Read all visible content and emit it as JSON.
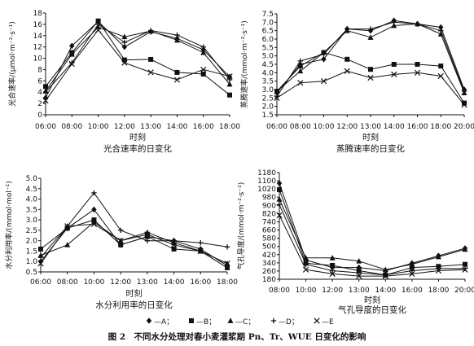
{
  "figure_caption": "图 2　不同水分处理对春小麦灌浆期 Pn、Tr、WUE 日变化的影响",
  "legend": {
    "entries": [
      {
        "label": "—A；",
        "marker": "diamond"
      },
      {
        "label": "—B；",
        "marker": "square"
      },
      {
        "label": "—C；",
        "marker": "triangle"
      },
      {
        "label": "—D；",
        "marker": "cross"
      },
      {
        "label": "—E",
        "marker": "x"
      }
    ]
  },
  "chart_data": [
    {
      "type": "line",
      "panel": "a",
      "title": "光合速率的日变化",
      "xlabel": "时刻",
      "ylabel": "光合速率/(μmol·m⁻²·s⁻¹)",
      "x": [
        "06:00",
        "08:00",
        "10:00",
        "12:00",
        "13:00",
        "14:00",
        "16:00",
        "18:00"
      ],
      "ylim": [
        0,
        18
      ],
      "yticks": [
        "0",
        "2",
        "4",
        "6",
        "8",
        "10",
        "12",
        "14",
        "16",
        "18"
      ],
      "series": [
        {
          "name": "A",
          "marker": "diamond",
          "values": [
            3.0,
            12.2,
            16.5,
            12.0,
            14.7,
            13.5,
            11.5,
            6.7
          ]
        },
        {
          "name": "B",
          "marker": "square",
          "values": [
            5.0,
            11.0,
            16.6,
            9.7,
            9.8,
            7.5,
            7.2,
            3.5
          ]
        },
        {
          "name": "C",
          "marker": "triangle",
          "values": [
            4.2,
            10.7,
            15.5,
            13.8,
            14.8,
            13.2,
            11.0,
            5.4
          ]
        },
        {
          "name": "D",
          "marker": "cross",
          "values": [
            4.0,
            9.2,
            16.0,
            12.8,
            14.9,
            14.1,
            12.0,
            6.2
          ]
        },
        {
          "name": "E",
          "marker": "x",
          "values": [
            2.5,
            9.0,
            15.0,
            9.2,
            7.5,
            6.2,
            8.0,
            6.8
          ]
        }
      ]
    },
    {
      "type": "line",
      "panel": "b",
      "title": "蒸腾速率的日变化",
      "xlabel": "时刻",
      "ylabel": "蒸腾速率/(mmol·m⁻²·s⁻¹)",
      "x": [
        "06:00",
        "08:00",
        "10:00",
        "12:00",
        "13:00",
        "14:00",
        "16:00",
        "18:00",
        "20:00"
      ],
      "ylim": [
        1.5,
        7.5
      ],
      "yticks": [
        "1.5",
        "2.0",
        "2.5",
        "3.0",
        "3.5",
        "4.0",
        "4.5",
        "5.0",
        "5.5",
        "6.0",
        "6.5",
        "7.0",
        "7.5"
      ],
      "series": [
        {
          "name": "A",
          "marker": "diamond",
          "values": [
            2.8,
            4.5,
            4.8,
            6.6,
            6.5,
            7.1,
            6.9,
            6.7,
            3.0
          ]
        },
        {
          "name": "B",
          "marker": "square",
          "values": [
            2.9,
            4.4,
            5.2,
            4.8,
            4.2,
            4.5,
            4.5,
            4.4,
            2.2
          ]
        },
        {
          "name": "C",
          "marker": "triangle",
          "values": [
            2.9,
            4.1,
            5.2,
            6.5,
            6.1,
            6.8,
            6.9,
            6.3,
            2.8
          ]
        },
        {
          "name": "D",
          "marker": "cross",
          "values": [
            2.6,
            4.7,
            5.1,
            6.6,
            6.6,
            7.0,
            6.9,
            6.5,
            2.9
          ]
        },
        {
          "name": "E",
          "marker": "x",
          "values": [
            2.5,
            3.4,
            3.5,
            4.1,
            3.7,
            3.9,
            4.0,
            3.8,
            2.1
          ]
        }
      ]
    },
    {
      "type": "line",
      "panel": "c",
      "title": "水分利用率的日变化",
      "xlabel": "时刻",
      "ylabel": "水分利用率/(mmol·mol⁻¹)",
      "x": [
        "06:00",
        "08:00",
        "10:00",
        "12:00",
        "13:00",
        "14:00",
        "16:00",
        "18:00"
      ],
      "ylim": [
        0.5,
        5.0
      ],
      "yticks": [
        "0.5",
        "1.0",
        "1.5",
        "2.0",
        "2.5",
        "3.0",
        "3.5",
        "4.0",
        "4.5",
        "5.0"
      ],
      "series": [
        {
          "name": "A",
          "marker": "diamond",
          "values": [
            1.0,
            2.6,
            3.5,
            1.8,
            2.2,
            2.0,
            1.6,
            0.8
          ]
        },
        {
          "name": "B",
          "marker": "square",
          "values": [
            1.6,
            2.6,
            3.0,
            1.8,
            2.2,
            1.6,
            1.5,
            0.7
          ]
        },
        {
          "name": "C",
          "marker": "triangle",
          "values": [
            1.3,
            1.8,
            2.9,
            2.0,
            2.4,
            1.9,
            1.5,
            0.9
          ]
        },
        {
          "name": "D",
          "marker": "cross",
          "values": [
            1.2,
            2.7,
            4.3,
            2.5,
            2.0,
            2.0,
            1.9,
            1.7
          ]
        },
        {
          "name": "E",
          "marker": "x",
          "values": [
            0.9,
            2.7,
            2.8,
            2.0,
            2.3,
            1.8,
            1.5,
            0.9
          ]
        }
      ]
    },
    {
      "type": "line",
      "panel": "d",
      "title": "气孔导度的日变化",
      "xlabel": "时刻",
      "ylabel": "气孔导度/(mmol·m⁻²·s⁻¹)",
      "x": [
        "08:00",
        "10:00",
        "12:00",
        "13:00",
        "14:00",
        "16:00",
        "18:00",
        "20:00"
      ],
      "ylim": [
        180,
        1180
      ],
      "yticks": [
        "180",
        "260",
        "340",
        "420",
        "500",
        "580",
        "660",
        "740",
        "820",
        "900",
        "980",
        "1020",
        "1100",
        "1180"
      ],
      "series": [
        {
          "name": "A",
          "marker": "diamond",
          "values": [
            1080,
            360,
            290,
            290,
            260,
            330,
            400,
            470
          ]
        },
        {
          "name": "B",
          "marker": "square",
          "values": [
            1020,
            330,
            310,
            260,
            220,
            290,
            300,
            320
          ]
        },
        {
          "name": "C",
          "marker": "triangle",
          "values": [
            930,
            380,
            380,
            350,
            270,
            320,
            390,
            460
          ]
        },
        {
          "name": "D",
          "marker": "cross",
          "values": [
            880,
            320,
            260,
            240,
            220,
            260,
            280,
            280
          ]
        },
        {
          "name": "E",
          "marker": "x",
          "values": [
            780,
            270,
            230,
            210,
            210,
            230,
            260,
            270
          ]
        }
      ]
    }
  ]
}
